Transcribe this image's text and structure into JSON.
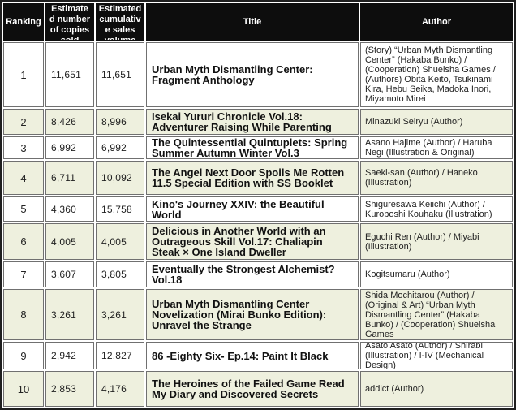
{
  "colors": {
    "header_bg": "#0d0d0d",
    "header_text": "#ffffff",
    "alt_row_bg": "#eef0de",
    "row_bg": "#ffffff",
    "cell_border": "#707070",
    "outer_border": "#1f1f1f",
    "text": "#1a1a1a"
  },
  "table": {
    "headers": {
      "ranking": "Ranking",
      "copies": "Estimate\nd number\nof copies\nsold",
      "cumulative": "Estimated\ncumulativ\ne sales\nvolume",
      "title": "Title",
      "author": "Author"
    }
  },
  "chart_data": {
    "type": "table",
    "columns": [
      "Ranking",
      "Estimated number of copies sold",
      "Estimated cumulative sales volume",
      "Title",
      "Author"
    ],
    "rows": [
      [
        "1",
        "11,651",
        "11,651",
        "Urban Myth Dismantling Center: Fragment Anthology",
        "(Story) “Urban Myth Dismantling Center” (Hakaba Bunko) / (Cooperation) Shueisha Games / (Authors) Obita Keito, Tsukinami Kira, Hebu Seika, Madoka Inori, Miyamoto Mirei"
      ],
      [
        "2",
        "8,426",
        "8,996",
        "Isekai Yururi Chronicle Vol.18: Adventurer Raising While Parenting",
        "Minazuki Seiryu (Author)"
      ],
      [
        "3",
        "6,992",
        "6,992",
        "The Quintessential Quintuplets: Spring Summer Autumn Winter Vol.3",
        "Asano Hajime (Author) / Haruba Negi (Illustration & Original)"
      ],
      [
        "4",
        "6,711",
        "10,092",
        "The Angel Next Door Spoils Me Rotten 11.5 Special Edition with SS Booklet",
        "Saeki-san (Author) / Haneko (Illustration)"
      ],
      [
        "5",
        "4,360",
        "15,758",
        "Kino's Journey XXIV: the Beautiful World",
        "Shiguresawa Keiichi (Author) / Kuroboshi Kouhaku (Illustration)"
      ],
      [
        "6",
        "4,005",
        "4,005",
        "Delicious in Another World with an Outrageous Skill Vol.17: Chaliapin Steak × One Island Dweller",
        "Eguchi Ren (Author) / Miyabi (Illustration)"
      ],
      [
        "7",
        "3,607",
        "3,805",
        "Eventually the Strongest Alchemist? Vol.18",
        "Kogitsumaru (Author)"
      ],
      [
        "8",
        "3,261",
        "3,261",
        "Urban Myth Dismantling Center Novelization (Mirai Bunko Edition): Unravel the Strange",
        "Shida Mochitarou (Author) / (Original & Art) “Urban Myth Dismantling Center” (Hakaba Bunko) / (Cooperation) Shueisha Games"
      ],
      [
        "9",
        "2,942",
        "12,827",
        "86 -Eighty Six- Ep.14: Paint It Black",
        "Asato Asato (Author) / Shirabi (Illustration) / I-IV (Mechanical Design)"
      ],
      [
        "10",
        "2,853",
        "4,176",
        "The Heroines of the Failed Game Read My Diary and Discovered Secrets",
        "addict (Author)"
      ]
    ]
  }
}
